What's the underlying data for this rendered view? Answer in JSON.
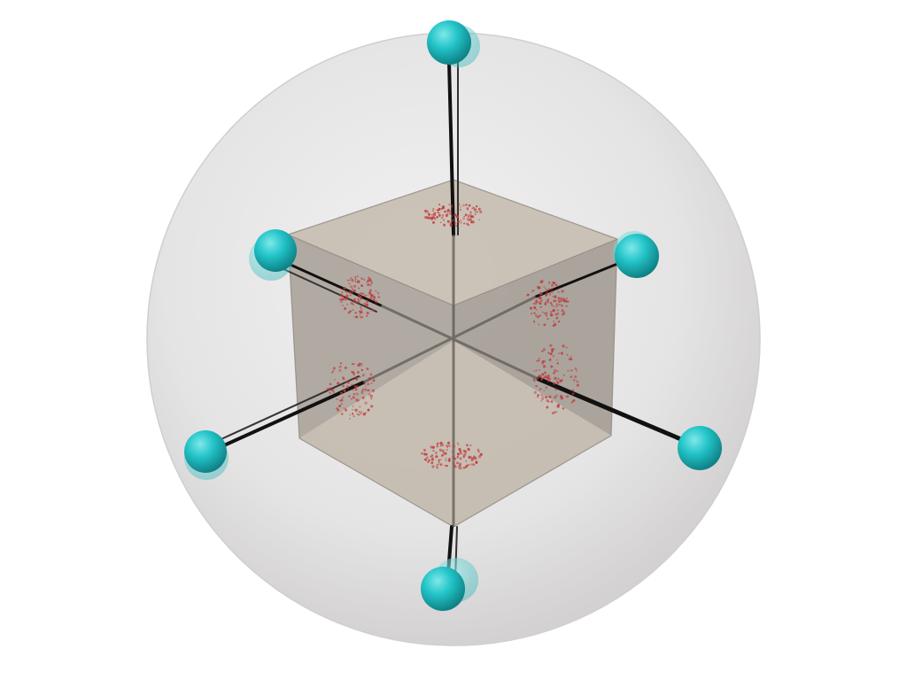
{
  "scene": {
    "subject": "cube-in-sphere",
    "colors": {
      "background": "#ffffff",
      "sphere_fill": "#e4e3e3",
      "sphere_edge": "#cfcdcd",
      "cube_face_top": "#c2b9ab",
      "cube_face_left": "#b8b0a6",
      "cube_face_right": "#aea69c",
      "cube_face_bottom": "#bfb7ab",
      "rod": "#111111",
      "node": "#22c4c8",
      "node_dark": "#118a8e",
      "particle": "#c0393b"
    },
    "node_count": 6,
    "particle_cluster_count": 6
  }
}
